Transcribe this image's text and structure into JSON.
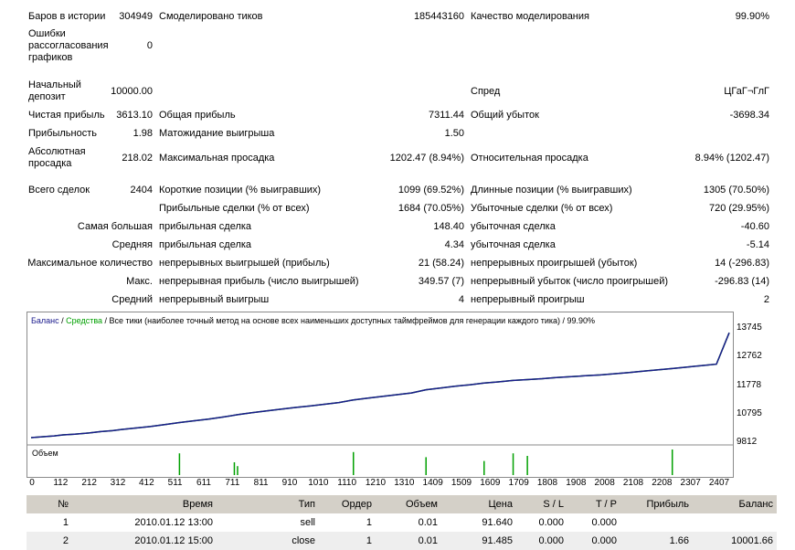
{
  "report": {
    "bars_label": "Баров в истории",
    "bars_value": "304949",
    "ticks_label": "Смоделировано тиков",
    "ticks_value": "185443160",
    "quality_label": "Качество моделирования",
    "quality_value": "99.90%",
    "mismatch_label": "Ошибки рассогласования графиков",
    "mismatch_value": "0",
    "deposit_label": "Начальный депозит",
    "deposit_value": "10000.00",
    "spread_label": "Спред",
    "spread_value": "ЦГаГ¬ГлГ",
    "net_profit_label": "Чистая прибыль",
    "net_profit_value": "3613.10",
    "gross_profit_label": "Общая прибыль",
    "gross_profit_value": "7311.44",
    "gross_loss_label": "Общий убыток",
    "gross_loss_value": "-3698.34",
    "profit_factor_label": "Прибыльность",
    "profit_factor_value": "1.98",
    "expected_payoff_label": "Матожидание выигрыша",
    "expected_payoff_value": "1.50",
    "abs_dd_label": "Абсолютная просадка",
    "abs_dd_value": "218.02",
    "max_dd_label": "Максимальная просадка",
    "max_dd_value": "1202.47 (8.94%)",
    "rel_dd_label": "Относительная просадка",
    "rel_dd_value": "8.94% (1202.47)",
    "total_trades_label": "Всего сделок",
    "total_trades_value": "2404",
    "short_label": "Короткие позиции (% выигравших)",
    "short_value": "1099 (69.52%)",
    "long_label": "Длинные позиции (% выигравших)",
    "long_value": "1305 (70.50%)",
    "profit_trades_label": "Прибыльные сделки (% от всех)",
    "profit_trades_value": "1684 (70.05%)",
    "loss_trades_label": "Убыточные сделки (% от всех)",
    "loss_trades_value": "720 (29.95%)",
    "largest_label": "Самая большая",
    "largest_profit_label": "прибыльная сделка",
    "largest_profit_value": "148.40",
    "largest_loss_label": "убыточная сделка",
    "largest_loss_value": "-40.60",
    "average_label": "Средняя",
    "average_profit_label": "прибыльная сделка",
    "average_profit_value": "4.34",
    "average_loss_label": "убыточная сделка",
    "average_loss_value": "-5.14",
    "max_count_label": "Максимальное количество",
    "cons_wins_label": "непрерывных выигрышей (прибыль)",
    "cons_wins_value": "21 (58.24)",
    "cons_losses_label": "непрерывных проигрышей (убыток)",
    "cons_losses_value": "14 (-296.83)",
    "max_label": "Макс.",
    "cons_profit_label": "непрерывная прибыль (число выигрышей)",
    "cons_profit_value": "349.57 (7)",
    "cons_loss_label": "непрерывный убыток (число проигрышей)",
    "cons_loss_value": "-296.83 (14)",
    "avg_cons_label": "Средний",
    "avg_wins_label": "непрерывный выигрыш",
    "avg_wins_value": "4",
    "avg_losses_label": "непрерывный проигрыш",
    "avg_losses_value": "2"
  },
  "chart": {
    "legend_balance": "Баланс",
    "legend_sep1": " / ",
    "legend_equity": "Средства",
    "legend_rest": " / Все тики (наиболее точный метод на основе всех наименьших доступных таймфреймов для генерации каждого тика) / 99.90%",
    "volume_label": "Объем",
    "colors": {
      "balance": "#1a1a8c",
      "equity": "#00a000",
      "volume": "#00a000"
    }
  },
  "chart_data": {
    "type": "line",
    "title": "",
    "ylim": [
      9812,
      13745
    ],
    "xlim": [
      0,
      2404
    ],
    "yticks": [
      "13745",
      "12762",
      "11778",
      "10795",
      "9812"
    ],
    "xticks": [
      "0",
      "112",
      "212",
      "312",
      "412",
      "511",
      "611",
      "711",
      "811",
      "910",
      "1010",
      "1110",
      "1210",
      "1310",
      "1409",
      "1509",
      "1609",
      "1709",
      "1808",
      "1908",
      "2008",
      "2108",
      "2208",
      "2307",
      "2407"
    ],
    "series": [
      {
        "name": "Баланс",
        "x": [
          0,
          80,
          110,
          150,
          200,
          240,
          280,
          311,
          360,
          410,
          460,
          511,
          560,
          611,
          660,
          711,
          760,
          811,
          860,
          910,
          960,
          1010,
          1060,
          1110,
          1160,
          1210,
          1260,
          1310,
          1360,
          1409,
          1460,
          1509,
          1560,
          1609,
          1660,
          1709,
          1760,
          1808,
          1860,
          1908,
          1960,
          2008,
          2060,
          2108,
          2160,
          2208,
          2260,
          2307,
          2360,
          2404
        ],
        "y": [
          10000,
          10060,
          10095,
          10120,
          10160,
          10210,
          10240,
          10280,
          10330,
          10380,
          10450,
          10520,
          10580,
          10640,
          10710,
          10790,
          10860,
          10920,
          10980,
          11040,
          11090,
          11150,
          11210,
          11300,
          11360,
          11420,
          11480,
          11540,
          11650,
          11710,
          11770,
          11820,
          11880,
          11920,
          11970,
          12000,
          12030,
          12070,
          12100,
          12130,
          12160,
          12200,
          12240,
          12290,
          12340,
          12380,
          12430,
          12480,
          12530,
          13613
        ]
      }
    ],
    "volume_spikes": [
      {
        "x": 511,
        "v": 0.85
      },
      {
        "x": 700,
        "v": 0.5
      },
      {
        "x": 711,
        "v": 0.35
      },
      {
        "x": 1110,
        "v": 0.9
      },
      {
        "x": 1360,
        "v": 0.7
      },
      {
        "x": 1560,
        "v": 0.55
      },
      {
        "x": 1660,
        "v": 0.85
      },
      {
        "x": 1709,
        "v": 0.75
      },
      {
        "x": 2208,
        "v": 1.0
      }
    ]
  },
  "trades": {
    "headers": [
      "№",
      "Время",
      "Тип",
      "Ордер",
      "Объем",
      "Цена",
      "S / L",
      "T / P",
      "Прибыль",
      "Баланс"
    ],
    "rows": [
      [
        "1",
        "2010.01.12 13:00",
        "sell",
        "1",
        "0.01",
        "91.640",
        "0.000",
        "0.000",
        "",
        ""
      ],
      [
        "2",
        "2010.01.12 15:00",
        "close",
        "1",
        "0.01",
        "91.485",
        "0.000",
        "0.000",
        "1.66",
        "10001.66"
      ]
    ]
  }
}
